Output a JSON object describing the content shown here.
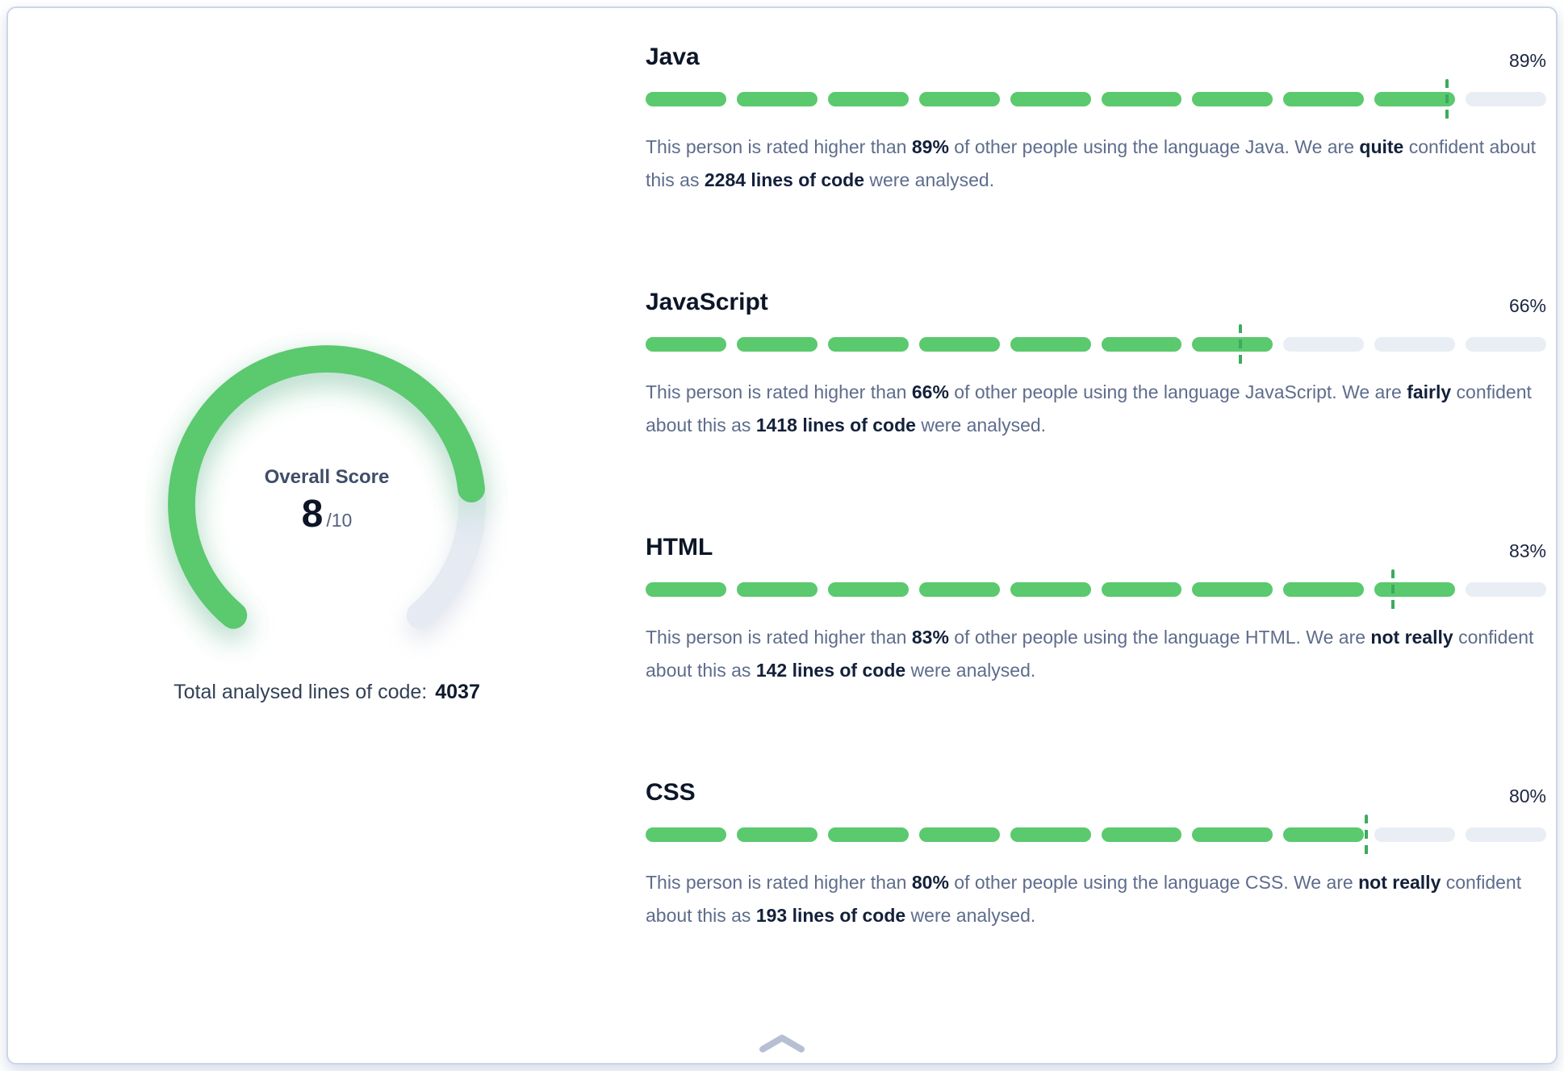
{
  "colors": {
    "fill_green": "#5bc96e",
    "marker_green": "#3cab5e",
    "track": "#e9edf4",
    "gauge_track": "#e5eaf3",
    "border": "#ccd6e9",
    "chevron": "#b7bfd4"
  },
  "gauge": {
    "label": "Overall Score",
    "score": 8,
    "max": 10,
    "max_label": "/10"
  },
  "total_lines": {
    "label": "Total analysed lines of code:",
    "value": "4037"
  },
  "bar": {
    "segments": 10
  },
  "languages": [
    {
      "name": "Java",
      "percent": 89,
      "lines_of_code": 2284,
      "confidence": "quite",
      "description": [
        {
          "text": "This person is rated higher than ",
          "bold": false
        },
        {
          "text": "89%",
          "bold": true
        },
        {
          "text": " of other people using the language Java. We are ",
          "bold": false
        },
        {
          "text": "quite",
          "bold": true
        },
        {
          "text": " confident about this as ",
          "bold": false
        },
        {
          "text": "2284 lines of code",
          "bold": true
        },
        {
          "text": " were analysed.",
          "bold": false
        }
      ]
    },
    {
      "name": "JavaScript",
      "percent": 66,
      "lines_of_code": 1418,
      "confidence": "fairly",
      "description": [
        {
          "text": "This person is rated higher than ",
          "bold": false
        },
        {
          "text": "66%",
          "bold": true
        },
        {
          "text": " of other people using the language JavaScript. We are ",
          "bold": false
        },
        {
          "text": "fairly",
          "bold": true
        },
        {
          "text": " confident about this as ",
          "bold": false
        },
        {
          "text": "1418 lines of code",
          "bold": true
        },
        {
          "text": " were analysed.",
          "bold": false
        }
      ]
    },
    {
      "name": "HTML",
      "percent": 83,
      "lines_of_code": 142,
      "confidence": "not really",
      "description": [
        {
          "text": "This person is rated higher than ",
          "bold": false
        },
        {
          "text": "83%",
          "bold": true
        },
        {
          "text": " of other people using the language HTML. We are ",
          "bold": false
        },
        {
          "text": "not really",
          "bold": true
        },
        {
          "text": " confident about this as ",
          "bold": false
        },
        {
          "text": "142 lines of code",
          "bold": true
        },
        {
          "text": " were analysed.",
          "bold": false
        }
      ]
    },
    {
      "name": "CSS",
      "percent": 80,
      "lines_of_code": 193,
      "confidence": "not really",
      "description": [
        {
          "text": "This person is rated higher than ",
          "bold": false
        },
        {
          "text": "80%",
          "bold": true
        },
        {
          "text": " of other people using the language CSS. We are ",
          "bold": false
        },
        {
          "text": "not really",
          "bold": true
        },
        {
          "text": " confident about this as ",
          "bold": false
        },
        {
          "text": "193 lines of code",
          "bold": true
        },
        {
          "text": " were analysed.",
          "bold": false
        }
      ]
    }
  ],
  "footer": {
    "collapse_icon": "chevron-up"
  }
}
